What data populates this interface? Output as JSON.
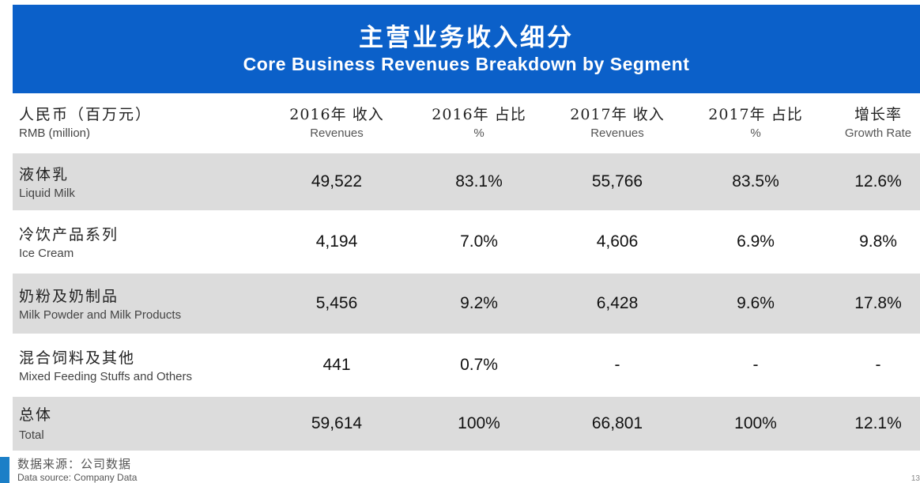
{
  "header": {
    "title_cn": "主营业务收入细分",
    "title_en": "Core Business Revenues Breakdown by Segment"
  },
  "columns": [
    {
      "cn": "人民币（百万元）",
      "en": "RMB (million)"
    },
    {
      "cn": "2016年 收入",
      "en": "Revenues"
    },
    {
      "cn": "2016年 占比",
      "en": "%"
    },
    {
      "cn": "2017年 收入",
      "en": "Revenues"
    },
    {
      "cn": "2017年 占比",
      "en": "%"
    },
    {
      "cn": "增长率",
      "en": "Growth Rate"
    }
  ],
  "rows": [
    {
      "cn": "液体乳",
      "en": "Liquid Milk",
      "v2016": "49,522",
      "p2016": "83.1%",
      "v2017": "55,766",
      "p2017": "83.5%",
      "growth": "12.6%"
    },
    {
      "cn": "冷饮产品系列",
      "en": "Ice Cream",
      "v2016": "4,194",
      "p2016": "7.0%",
      "v2017": "4,606",
      "p2017": "6.9%",
      "growth": "9.8%"
    },
    {
      "cn": "奶粉及奶制品",
      "en": "Milk Powder and Milk Products",
      "v2016": "5,456",
      "p2016": "9.2%",
      "v2017": "6,428",
      "p2017": "9.6%",
      "growth": "17.8%"
    },
    {
      "cn": "混合饲料及其他",
      "en": "Mixed Feeding Stuffs and Others",
      "v2016": "441",
      "p2016": "0.7%",
      "v2017": "-",
      "p2017": "-",
      "growth": "-"
    },
    {
      "cn": "总体",
      "en": "Total",
      "v2016": "59,614",
      "p2016": "100%",
      "v2017": "66,801",
      "p2017": "100%",
      "growth": "12.1%"
    }
  ],
  "footer": {
    "source_cn": "数据来源：公司数据",
    "source_en": "Data source: Company Data"
  },
  "page_number": "13",
  "colors": {
    "header_bg": "#0b60c9",
    "row_shade": "#dcdcdc"
  }
}
